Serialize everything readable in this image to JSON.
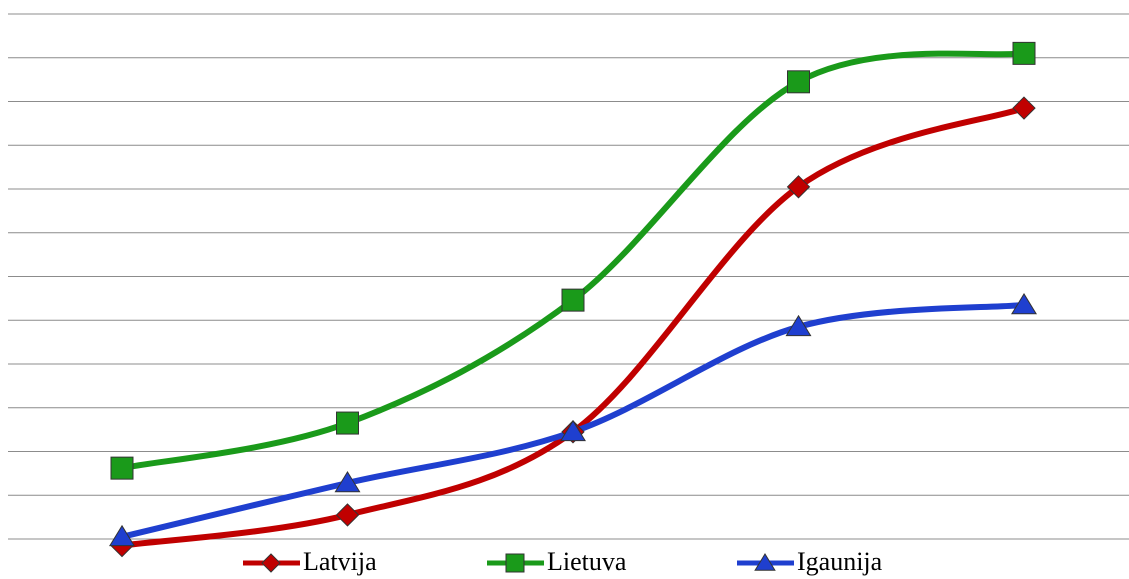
{
  "chart_data": {
    "type": "line",
    "categories": [
      null,
      null,
      null,
      null,
      null
    ],
    "series": [
      {
        "name": "Latvija",
        "color": "#c00000",
        "marker": "diamond",
        "values": [
          -0.15,
          0.55,
          2.45,
          8.05,
          9.85
        ]
      },
      {
        "name": "Lietuva",
        "color": "#1a9a1a",
        "marker": "square",
        "values": [
          1.62,
          2.65,
          5.46,
          10.45,
          11.1
        ]
      },
      {
        "name": "Igaunija",
        "color": "#1f3fcf",
        "marker": "triangle",
        "values": [
          0.05,
          1.28,
          2.45,
          4.85,
          5.35
        ]
      }
    ],
    "ylim": [
      0,
      12
    ],
    "yticks": [
      0,
      1,
      2,
      3,
      4,
      5,
      6,
      7,
      8,
      9,
      10,
      11,
      12
    ],
    "grid": true,
    "smooth": true,
    "legend": "bottom"
  }
}
